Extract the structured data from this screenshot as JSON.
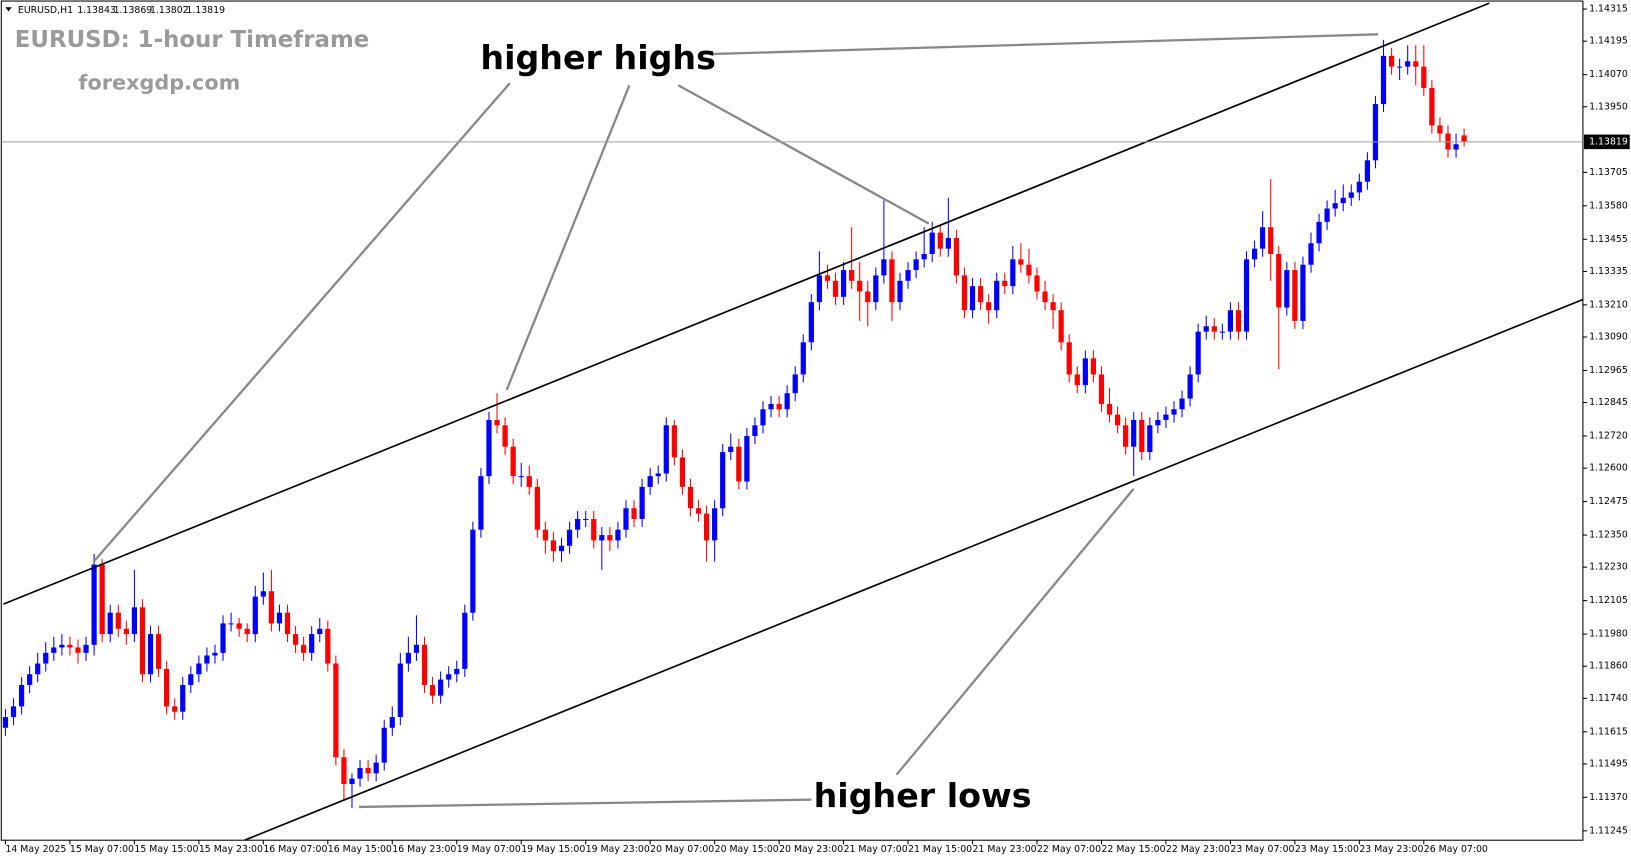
{
  "chart_data": {
    "type": "candlestick",
    "symbol": "EURUSD,H1",
    "title": "EURUSD: 1-hour Timeframe",
    "subtitle": "forexgdp.com",
    "annotations": [
      "higher highs",
      "higher lows"
    ],
    "up_color": "#0000ff",
    "down_color": "#ff0000",
    "grid": false,
    "ylim": [
      1.1121,
      1.14345
    ],
    "yticks": [
      1.14315,
      1.14195,
      {
        "value": 1.1407,
        "label": "1.14070"
      },
      {
        "value": 1.1395,
        "label": "1.13950"
      },
      1.13705,
      {
        "value": 1.1358,
        "label": "1.13580"
      },
      1.13455,
      1.13335,
      {
        "value": 1.1321,
        "label": "1.13210"
      },
      {
        "value": 1.1309,
        "label": "1.13090"
      },
      1.12965,
      1.12845,
      {
        "value": 1.1272,
        "label": "1.12720"
      },
      {
        "value": 1.126,
        "label": "1.12600"
      },
      1.12475,
      {
        "value": 1.1235,
        "label": "1.12350"
      },
      {
        "value": 1.1223,
        "label": "1.12230"
      },
      1.12105,
      {
        "value": 1.1198,
        "label": "1.11980"
      },
      {
        "value": 1.1186,
        "label": "1.11860"
      },
      {
        "value": 1.1174,
        "label": "1.11740"
      },
      1.11615,
      1.11495,
      {
        "value": 1.1137,
        "label": "1.11370"
      },
      1.11245
    ],
    "categories": [
      "14 May 2025",
      null,
      null,
      null,
      null,
      null,
      null,
      null,
      "15 May 07:00",
      null,
      null,
      null,
      null,
      null,
      null,
      null,
      "15 May 15:00",
      null,
      null,
      null,
      null,
      null,
      null,
      null,
      "15 May 23:00",
      null,
      null,
      null,
      null,
      null,
      null,
      null,
      "16 May 07:00",
      null,
      null,
      null,
      null,
      null,
      null,
      null,
      "16 May 15:00",
      null,
      null,
      null,
      null,
      null,
      null,
      null,
      "16 May 23:00",
      null,
      null,
      null,
      null,
      null,
      null,
      null,
      "19 May 07:00",
      null,
      null,
      null,
      null,
      null,
      null,
      null,
      "19 May 15:00",
      null,
      null,
      null,
      null,
      null,
      null,
      null,
      "19 May 23:00",
      null,
      null,
      null,
      null,
      null,
      null,
      null,
      "20 May 07:00",
      null,
      null,
      null,
      null,
      null,
      null,
      null,
      "20 May 15:00",
      null,
      null,
      null,
      null,
      null,
      null,
      null,
      "20 May 23:00",
      null,
      null,
      null,
      null,
      null,
      null,
      null,
      "21 May 07:00",
      null,
      null,
      null,
      null,
      null,
      null,
      null,
      "21 May 15:00",
      null,
      null,
      null,
      null,
      null,
      null,
      null,
      "21 May 23:00",
      null,
      null,
      null,
      null,
      null,
      null,
      null,
      "22 May 07:00",
      null,
      null,
      null,
      null,
      null,
      null,
      null,
      "22 May 15:00",
      null,
      null,
      null,
      null,
      null,
      null,
      null,
      "22 May 23:00",
      null,
      null,
      null,
      null,
      null,
      null,
      null,
      "23 May 07:00",
      null,
      null,
      null,
      null,
      null,
      null,
      null,
      "23 May 15:00",
      null,
      null,
      null,
      null,
      null,
      null,
      null,
      "23 May 23:00",
      null,
      null,
      null,
      null,
      null,
      null,
      null,
      "26 May 07:00",
      null,
      null,
      null,
      null,
      null
    ],
    "open": [
      1.1163,
      1.1167,
      1.1171,
      1.1179,
      1.1183,
      1.1187,
      1.1191,
      1.1193,
      1.1194,
      1.1193,
      1.1191,
      1.1194,
      1.1224,
      1.1198,
      1.1206,
      1.12,
      1.1198,
      1.1208,
      1.1183,
      1.1198,
      1.1185,
      1.1171,
      1.1169,
      1.1179,
      1.1183,
      1.1187,
      1.119,
      1.1191,
      1.1202,
      1.1202,
      1.12,
      1.1198,
      1.1212,
      1.1214,
      1.1202,
      1.1206,
      1.1198,
      1.1194,
      1.1191,
      1.1198,
      1.12,
      1.1187,
      1.1152,
      1.1142,
      1.1144,
      1.1148,
      1.1146,
      1.115,
      1.1163,
      1.1167,
      1.1187,
      1.1191,
      1.1194,
      1.1179,
      1.1175,
      1.1181,
      1.1183,
      1.1185,
      1.1206,
      1.1237,
      1.1257,
      1.1278,
      1.1276,
      1.1268,
      1.1257,
      1.1257,
      1.1253,
      1.1237,
      1.1233,
      1.1229,
      1.1231,
      1.1237,
      1.1241,
      1.1241,
      1.1233,
      1.1235,
      1.1233,
      1.1237,
      1.1245,
      1.1241,
      1.1253,
      1.1257,
      1.1258,
      1.1276,
      1.1264,
      1.1253,
      1.1245,
      1.1243,
      1.1233,
      1.1245,
      1.1266,
      1.1268,
      1.1255,
      1.1272,
      1.1276,
      1.1282,
      1.1284,
      1.1282,
      1.1288,
      1.1295,
      1.1307,
      1.1322,
      1.1332,
      1.133,
      1.1324,
      1.1334,
      1.133,
      1.1326,
      1.1322,
      1.1332,
      1.1338,
      1.1322,
      1.133,
      1.1334,
      1.1338,
      1.134,
      1.1348,
      1.1342,
      1.1346,
      1.1332,
      1.1319,
      1.1328,
      1.1322,
      1.1319,
      1.133,
      1.1328,
      1.1338,
      1.1336,
      1.1332,
      1.1326,
      1.1322,
      1.1319,
      1.1307,
      1.1295,
      1.1291,
      1.1301,
      1.1295,
      1.1284,
      1.128,
      1.1276,
      1.1268,
      1.1278,
      1.1266,
      1.1276,
      1.1278,
      1.128,
      1.1282,
      1.1286,
      1.1295,
      1.1311,
      1.1313,
      1.1311,
      1.1311,
      1.1319,
      1.1311,
      1.1338,
      1.1342,
      1.135,
      1.134,
      1.132,
      1.1334,
      1.1315,
      1.1336,
      1.1344,
      1.1352,
      1.1357,
      1.1359,
      1.1361,
      1.1363,
      1.1367,
      1.1375,
      1.1396,
      1.1414,
      1.141,
      1.141,
      1.1412,
      1.141,
      1.1402,
      1.1388,
      1.1385,
      1.1379,
      1.13843
    ],
    "high": [
      1.117,
      1.1174,
      1.1182,
      1.1186,
      1.1191,
      1.1195,
      1.1197,
      1.1198,
      1.1197,
      1.1196,
      1.1197,
      1.1228,
      1.1226,
      1.1209,
      1.1209,
      1.1203,
      1.1222,
      1.1211,
      1.1201,
      1.1201,
      1.1188,
      1.1174,
      1.1182,
      1.1186,
      1.119,
      1.1193,
      1.1194,
      1.1205,
      1.1206,
      1.1204,
      1.1202,
      1.1216,
      1.1221,
      1.1222,
      1.1209,
      1.1209,
      1.1201,
      1.1197,
      1.1201,
      1.1204,
      1.1203,
      1.119,
      1.1155,
      1.1146,
      1.1151,
      1.1151,
      1.1153,
      1.1166,
      1.1171,
      1.1191,
      1.1197,
      1.1205,
      1.1197,
      1.1182,
      1.1184,
      1.1186,
      1.1188,
      1.1209,
      1.124,
      1.126,
      1.1281,
      1.1288,
      1.1279,
      1.1271,
      1.1262,
      1.1261,
      1.1256,
      1.124,
      1.1236,
      1.1234,
      1.124,
      1.1244,
      1.1244,
      1.1244,
      1.1238,
      1.1238,
      1.124,
      1.1248,
      1.1248,
      1.1256,
      1.126,
      1.1261,
      1.1279,
      1.1278,
      1.1267,
      1.1256,
      1.1248,
      1.1246,
      1.1248,
      1.1269,
      1.1273,
      1.1271,
      1.1275,
      1.1279,
      1.1285,
      1.1287,
      1.1287,
      1.1291,
      1.1298,
      1.131,
      1.1325,
      1.1341,
      1.1336,
      1.1333,
      1.1337,
      1.135,
      1.1337,
      1.133,
      1.1335,
      1.136,
      1.1341,
      1.1333,
      1.1337,
      1.1341,
      1.135,
      1.1352,
      1.1351,
      1.1361,
      1.1349,
      1.1335,
      1.1331,
      1.1331,
      1.1325,
      1.1333,
      1.1333,
      1.1343,
      1.1344,
      1.1342,
      1.1335,
      1.133,
      1.1325,
      1.1322,
      1.131,
      1.1298,
      1.1304,
      1.1304,
      1.1298,
      1.129,
      1.1283,
      1.1279,
      1.1281,
      1.1281,
      1.1279,
      1.1281,
      1.1283,
      1.1285,
      1.1289,
      1.1298,
      1.1314,
      1.1317,
      1.1316,
      1.1314,
      1.1322,
      1.1322,
      1.1341,
      1.1345,
      1.1356,
      1.1368,
      1.1343,
      1.1337,
      1.1337,
      1.1339,
      1.1348,
      1.1355,
      1.136,
      1.1364,
      1.1366,
      1.1366,
      1.137,
      1.1378,
      1.1399,
      1.142,
      1.1417,
      1.1413,
      1.1418,
      1.1418,
      1.1418,
      1.1405,
      1.1391,
      1.1388,
      1.1385,
      1.13869
    ],
    "low": [
      1.116,
      1.1164,
      1.1168,
      1.1176,
      1.118,
      1.1184,
      1.1188,
      1.119,
      1.119,
      1.1187,
      1.1188,
      1.119,
      1.1195,
      1.1195,
      1.1197,
      1.1194,
      1.1195,
      1.118,
      1.118,
      1.1182,
      1.1168,
      1.1166,
      1.1166,
      1.1176,
      1.118,
      1.1184,
      1.1187,
      1.1188,
      1.1199,
      1.1197,
      1.1195,
      1.1195,
      1.1209,
      1.1199,
      1.1199,
      1.1195,
      1.1191,
      1.1188,
      1.1188,
      1.1195,
      1.1184,
      1.1149,
      1.1136,
      1.1133,
      1.1141,
      1.1143,
      1.1143,
      1.1147,
      1.116,
      1.1164,
      1.1184,
      1.1188,
      1.1176,
      1.1172,
      1.1172,
      1.1178,
      1.118,
      1.1182,
      1.1203,
      1.1234,
      1.1254,
      1.1273,
      1.1265,
      1.1254,
      1.1253,
      1.125,
      1.1234,
      1.1228,
      1.1225,
      1.1225,
      1.1228,
      1.1234,
      1.1238,
      1.123,
      1.1222,
      1.1229,
      1.123,
      1.1234,
      1.1238,
      1.1238,
      1.125,
      1.1254,
      1.1255,
      1.1261,
      1.125,
      1.1242,
      1.124,
      1.1225,
      1.1225,
      1.1242,
      1.1263,
      1.1252,
      1.1252,
      1.1269,
      1.1273,
      1.1279,
      1.1279,
      1.1279,
      1.1285,
      1.1292,
      1.1304,
      1.1319,
      1.1327,
      1.1321,
      1.1321,
      1.1327,
      1.1315,
      1.1313,
      1.1319,
      1.1329,
      1.1315,
      1.1319,
      1.1327,
      1.1331,
      1.1335,
      1.1337,
      1.1339,
      1.1339,
      1.1329,
      1.1316,
      1.1316,
      1.1319,
      1.1314,
      1.1316,
      1.1325,
      1.1325,
      1.1333,
      1.1329,
      1.1323,
      1.1319,
      1.1312,
      1.1304,
      1.1292,
      1.1288,
      1.1288,
      1.1292,
      1.1281,
      1.1277,
      1.1273,
      1.1265,
      1.1257,
      1.1263,
      1.1263,
      1.1273,
      1.1275,
      1.1277,
      1.1279,
      1.1283,
      1.1292,
      1.1308,
      1.1308,
      1.1308,
      1.1308,
      1.1308,
      1.1308,
      1.1335,
      1.1339,
      1.133,
      1.1297,
      1.1317,
      1.1312,
      1.1312,
      1.1333,
      1.1341,
      1.1349,
      1.1354,
      1.1356,
      1.1358,
      1.136,
      1.1364,
      1.1372,
      1.1393,
      1.1407,
      1.1405,
      1.1407,
      1.1403,
      1.1399,
      1.1385,
      1.1382,
      1.1376,
      1.1376,
      1.13802
    ],
    "close": [
      1.1167,
      1.1171,
      1.1179,
      1.1183,
      1.1187,
      1.1191,
      1.1193,
      1.1194,
      1.1193,
      1.1191,
      1.1194,
      1.1224,
      1.1198,
      1.1206,
      1.12,
      1.1198,
      1.1208,
      1.1183,
      1.1198,
      1.1185,
      1.1171,
      1.1169,
      1.1179,
      1.1183,
      1.1187,
      1.119,
      1.1191,
      1.1202,
      1.1202,
      1.12,
      1.1198,
      1.1212,
      1.1214,
      1.1202,
      1.1206,
      1.1198,
      1.1194,
      1.1191,
      1.1198,
      1.12,
      1.1187,
      1.1152,
      1.1142,
      1.1144,
      1.1148,
      1.1146,
      1.115,
      1.1163,
      1.1167,
      1.1187,
      1.1191,
      1.1194,
      1.1179,
      1.1175,
      1.1181,
      1.1183,
      1.1185,
      1.1206,
      1.1237,
      1.1257,
      1.1278,
      1.1276,
      1.1268,
      1.1257,
      1.1257,
      1.1253,
      1.1237,
      1.1233,
      1.1229,
      1.1231,
      1.1237,
      1.1241,
      1.1241,
      1.1233,
      1.1235,
      1.1233,
      1.1237,
      1.1245,
      1.1241,
      1.1253,
      1.1257,
      1.1258,
      1.1276,
      1.1264,
      1.1253,
      1.1245,
      1.1243,
      1.1233,
      1.1245,
      1.1266,
      1.1268,
      1.1255,
      1.1272,
      1.1276,
      1.1282,
      1.1284,
      1.1282,
      1.1288,
      1.1295,
      1.1307,
      1.1322,
      1.1332,
      1.133,
      1.1324,
      1.1334,
      1.133,
      1.1326,
      1.1322,
      1.1332,
      1.1338,
      1.1322,
      1.133,
      1.1334,
      1.1338,
      1.134,
      1.1348,
      1.1342,
      1.1346,
      1.1332,
      1.1319,
      1.1328,
      1.1322,
      1.1319,
      1.133,
      1.1328,
      1.1338,
      1.1336,
      1.1332,
      1.1326,
      1.1322,
      1.1319,
      1.1307,
      1.1295,
      1.1291,
      1.1301,
      1.1295,
      1.1284,
      1.128,
      1.1276,
      1.1268,
      1.1278,
      1.1266,
      1.1276,
      1.1278,
      1.128,
      1.1282,
      1.1286,
      1.1295,
      1.1311,
      1.1313,
      1.1311,
      1.1311,
      1.1319,
      1.1311,
      1.1338,
      1.1342,
      1.135,
      1.134,
      1.132,
      1.1334,
      1.1315,
      1.1336,
      1.1344,
      1.1352,
      1.1357,
      1.1359,
      1.1361,
      1.1363,
      1.1367,
      1.1375,
      1.1396,
      1.1414,
      1.141,
      1.141,
      1.1412,
      1.141,
      1.1402,
      1.1388,
      1.1385,
      1.1379,
      1.1381,
      1.13819
    ]
  }
}
